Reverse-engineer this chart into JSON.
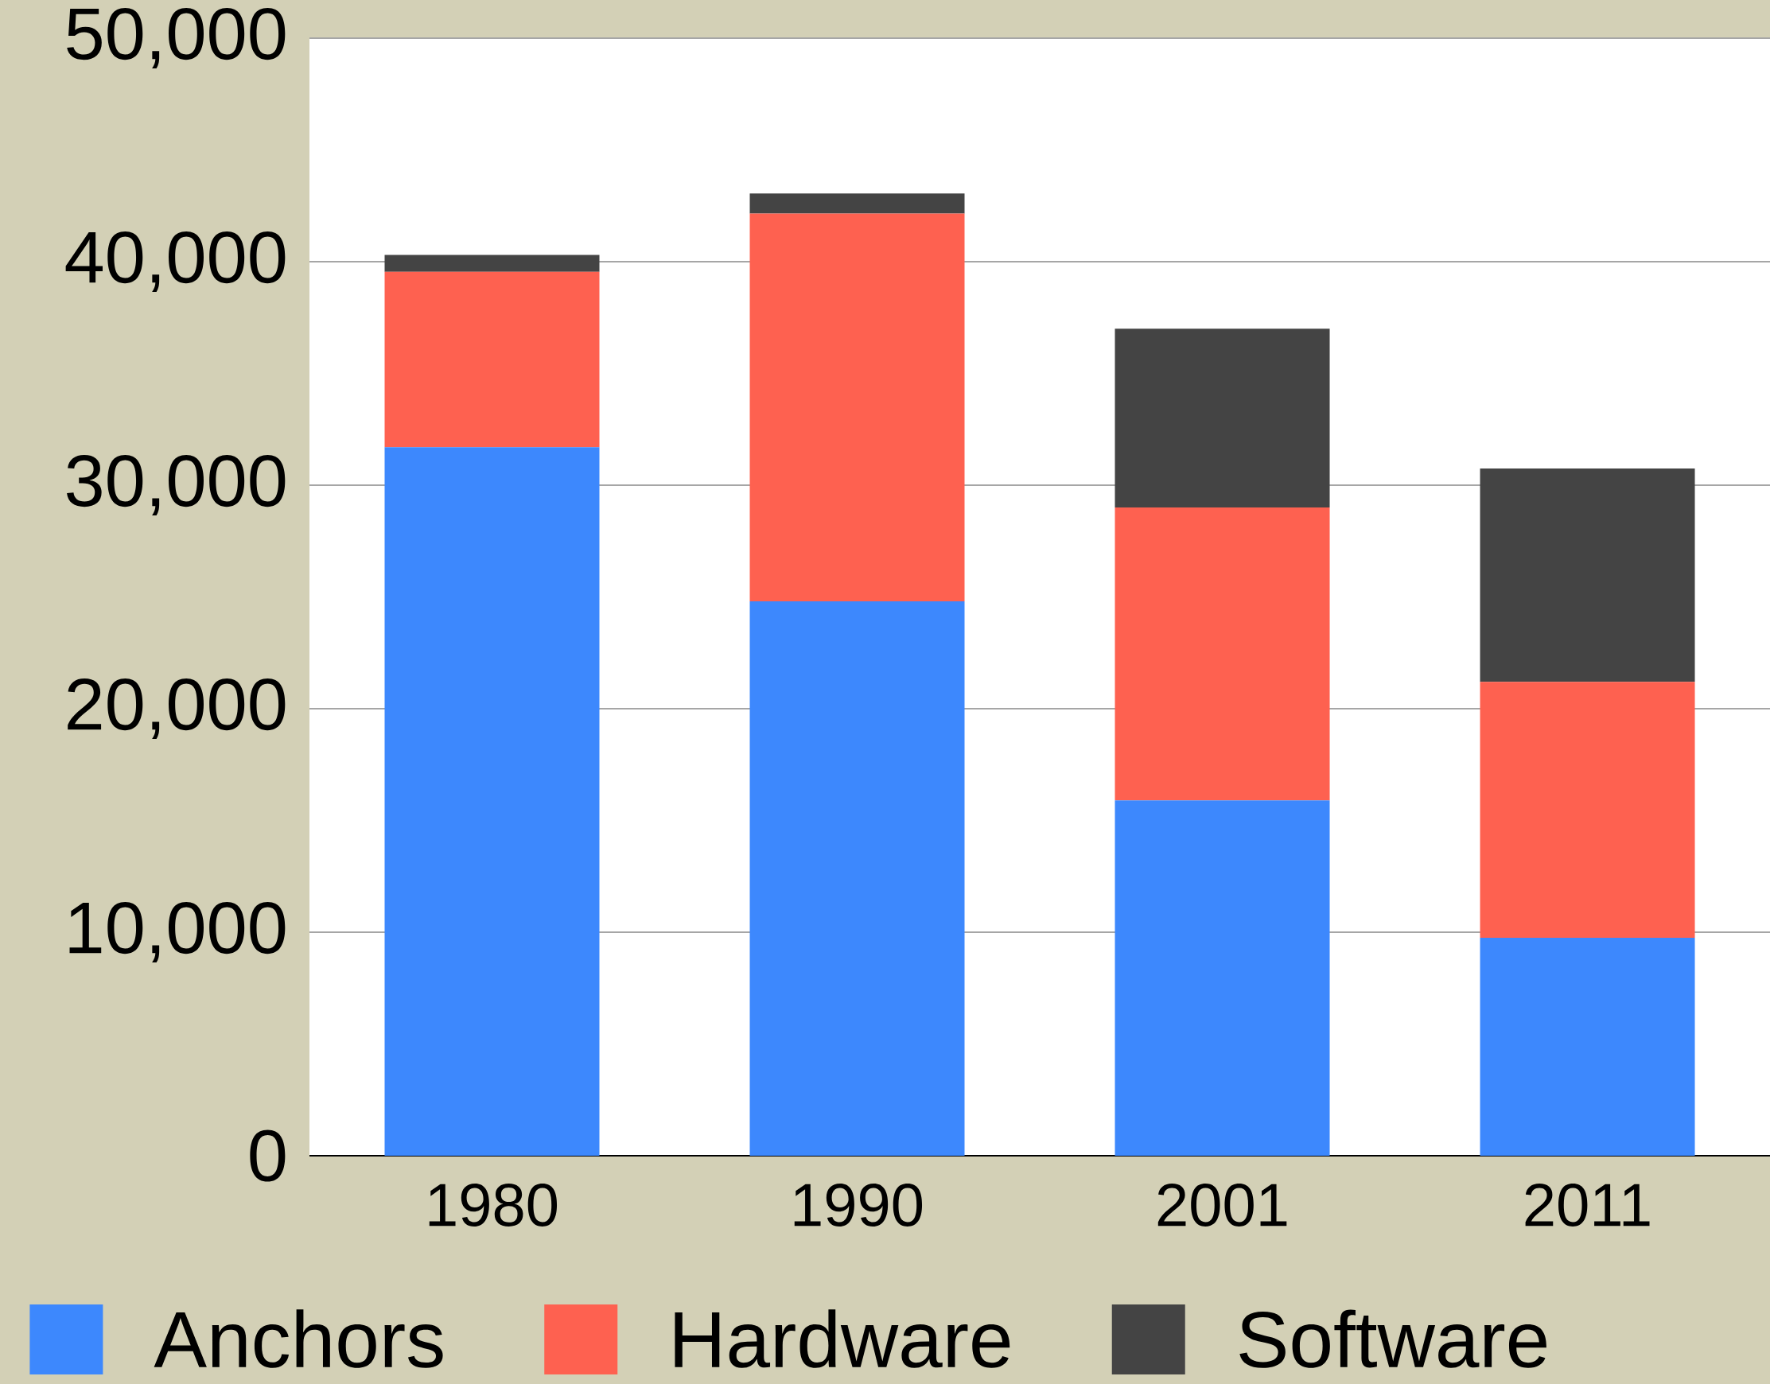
{
  "chart_data": {
    "type": "bar",
    "stacked": true,
    "categories": [
      "1980",
      "1990",
      "2001",
      "2011"
    ],
    "series": [
      {
        "name": "Anchors",
        "color": "#3d88fd",
        "values": [
          31700,
          24800,
          15900,
          9750
        ]
      },
      {
        "name": "Hardware",
        "color": "#fe6150",
        "values": [
          7850,
          17350,
          13100,
          11450
        ]
      },
      {
        "name": "Software",
        "color": "#444444",
        "values": [
          750,
          900,
          8000,
          9550
        ]
      }
    ],
    "ylim": [
      0,
      50000
    ],
    "yticks": [
      {
        "value": 0,
        "label": "0"
      },
      {
        "value": 10000,
        "label": "10,000"
      },
      {
        "value": 20000,
        "label": "20,000"
      },
      {
        "value": 30000,
        "label": "30,000"
      },
      {
        "value": 40000,
        "label": "40,000"
      },
      {
        "value": 50000,
        "label": "50,000"
      }
    ],
    "grid": "y",
    "legend": "bottom"
  }
}
